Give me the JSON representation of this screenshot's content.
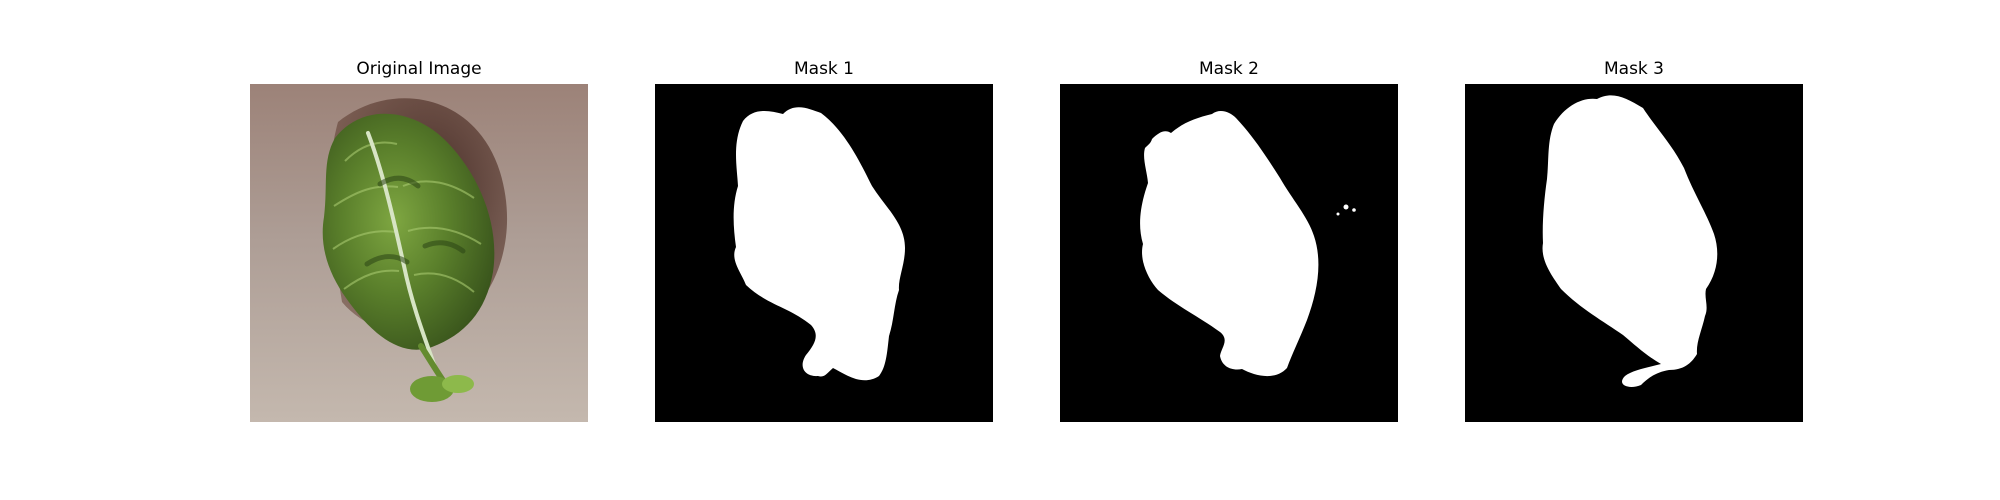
{
  "figure": {
    "panels": [
      {
        "title": "Original Image"
      },
      {
        "title": "Mask 1"
      },
      {
        "title": "Mask 2"
      },
      {
        "title": "Mask 3"
      }
    ]
  },
  "colors": {
    "background": "#ffffff",
    "mask_background": "#000000",
    "mask_foreground": "#ffffff",
    "surface": "#a89a91",
    "leaf_dark": "#3f5f1f",
    "leaf_mid": "#5f862c",
    "leaf_light": "#8dba4b",
    "vein": "#d7e4c4",
    "shadow": "#4f3028"
  }
}
